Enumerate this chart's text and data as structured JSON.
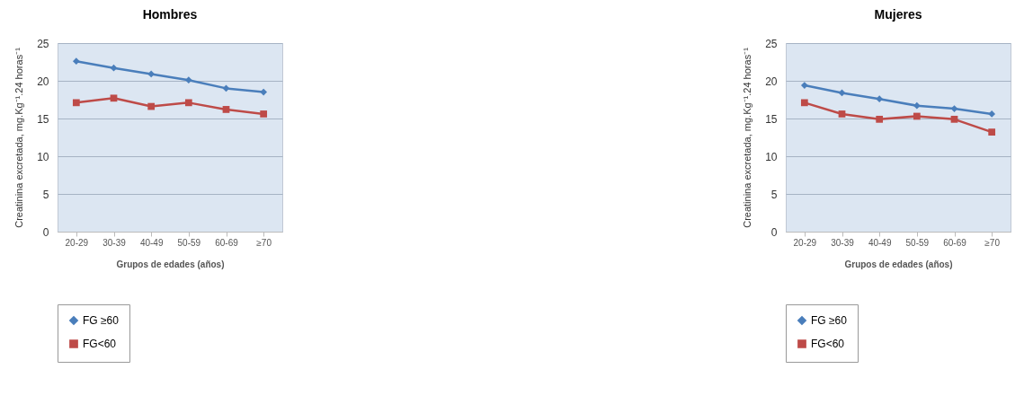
{
  "chart_data": [
    {
      "type": "line",
      "title": "Hombres",
      "xlabel": "Grupos de edades (años)",
      "ylabel": "Creatinina excretada, mg.Kg⁻¹.24 horas⁻¹",
      "categories": [
        "20-29",
        "30-39",
        "40-49",
        "50-59",
        "60-69",
        "≥70"
      ],
      "ylim": [
        0,
        25
      ],
      "yticks": [
        0,
        5,
        10,
        15,
        20,
        25
      ],
      "grid": "y",
      "legend": "bottom",
      "series": [
        {
          "name": "FG ≥60",
          "color": "#4a7ebb",
          "marker": "diamond",
          "values": [
            22.6,
            21.7,
            20.9,
            20.1,
            19.0,
            18.5
          ]
        },
        {
          "name": "FG<60",
          "color": "#be4b48",
          "marker": "square",
          "values": [
            17.1,
            17.7,
            16.6,
            17.1,
            16.2,
            15.6
          ]
        }
      ]
    },
    {
      "type": "line",
      "title": "Mujeres",
      "xlabel": "Grupos de edades (años)",
      "ylabel": "Creatinina excretada, mg.Kg⁻¹.24 horas⁻¹",
      "categories": [
        "20-29",
        "30-39",
        "40-49",
        "50-59",
        "60-69",
        "≥70"
      ],
      "ylim": [
        0,
        25
      ],
      "yticks": [
        0,
        5,
        10,
        15,
        20,
        25
      ],
      "grid": "y",
      "legend": "bottom",
      "series": [
        {
          "name": "FG ≥60",
          "color": "#4a7ebb",
          "marker": "diamond",
          "values": [
            19.4,
            18.4,
            17.6,
            16.7,
            16.3,
            15.6
          ]
        },
        {
          "name": "FG<60",
          "color": "#be4b48",
          "marker": "square",
          "values": [
            17.1,
            15.6,
            14.9,
            15.3,
            14.9,
            13.2
          ]
        }
      ]
    }
  ]
}
